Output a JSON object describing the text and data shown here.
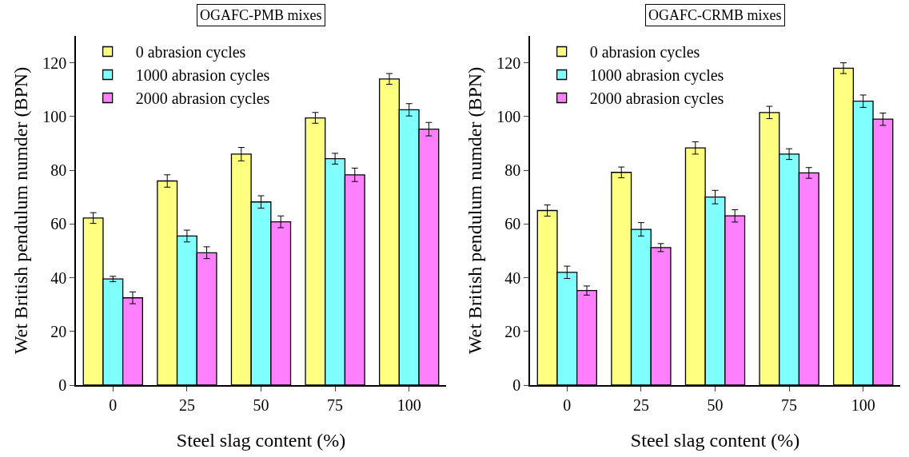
{
  "chart_data": [
    {
      "type": "bar",
      "title": "OGAFC-PMB mixes",
      "xlabel": "Steel slag content (%)",
      "ylabel": "Wet British pendulum numder (BPN)",
      "categories": [
        "0",
        "25",
        "50",
        "75",
        "100"
      ],
      "ylim": [
        0,
        130
      ],
      "yticks": [
        0,
        20,
        40,
        60,
        80,
        100,
        120
      ],
      "grid": false,
      "legend": "top left",
      "series": [
        {
          "name": "0 abrasion cycles",
          "color": "#ffff80",
          "values": [
            62.2,
            76,
            86,
            99.5,
            114
          ],
          "errors": [
            2,
            2.3,
            2.5,
            2,
            2
          ]
        },
        {
          "name": "1000 abrasion cycles",
          "color": "#80ffff",
          "values": [
            39.5,
            55.5,
            68.2,
            84.3,
            102.5
          ],
          "errors": [
            1,
            2.2,
            2.3,
            2,
            2.3
          ]
        },
        {
          "name": "2000 abrasion cycles",
          "color": "#ff80ff",
          "values": [
            32.5,
            49.3,
            60.8,
            78.3,
            95.3
          ],
          "errors": [
            2.2,
            2.2,
            2.2,
            2.5,
            2.5
          ]
        }
      ]
    },
    {
      "type": "bar",
      "title": "OGAFC-CRMB mixes",
      "xlabel": "Steel slag content (%)",
      "ylabel": "Wet British pendulum numder (BPN)",
      "categories": [
        "0",
        "25",
        "50",
        "75",
        "100"
      ],
      "ylim": [
        0,
        130
      ],
      "yticks": [
        0,
        20,
        40,
        60,
        80,
        100,
        120
      ],
      "grid": false,
      "legend": "top left",
      "series": [
        {
          "name": "0 abrasion cycles",
          "color": "#ffff80",
          "values": [
            65,
            79.2,
            88.3,
            101.5,
            118
          ],
          "errors": [
            2.1,
            2,
            2.3,
            2.3,
            2
          ]
        },
        {
          "name": "1000 abrasion cycles",
          "color": "#80ffff",
          "values": [
            42,
            58,
            70,
            86,
            105.7
          ],
          "errors": [
            2.3,
            2.5,
            2.5,
            2,
            2.3
          ]
        },
        {
          "name": "2000 abrasion cycles",
          "color": "#ff80ff",
          "values": [
            35.2,
            51.2,
            63,
            79,
            99
          ],
          "errors": [
            1.7,
            1.5,
            2.3,
            2,
            2.3
          ]
        }
      ]
    }
  ]
}
